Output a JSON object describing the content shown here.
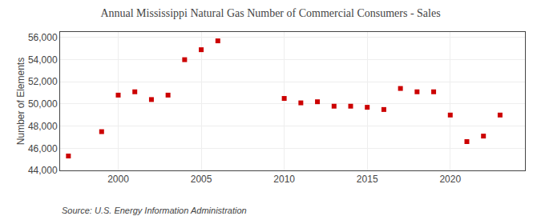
{
  "chart_data": {
    "type": "scatter",
    "title": "Annual Mississippi Natural Gas Number of Commercial Consumers - Sales",
    "ylabel": "Number of Elements",
    "annotations": [
      "Source: U.S. Energy Information Administration"
    ],
    "x": [
      1997,
      1999,
      2000,
      2001,
      2002,
      2003,
      2004,
      2005,
      2006,
      2010,
      2011,
      2012,
      2013,
      2014,
      2015,
      2016,
      2017,
      2018,
      2019,
      2020,
      2021,
      2022,
      2023
    ],
    "values": [
      45300,
      47500,
      50800,
      51100,
      50400,
      50800,
      54000,
      54900,
      55700,
      50500,
      50100,
      50200,
      49800,
      49800,
      49700,
      49500,
      51400,
      51100,
      51100,
      49000,
      46600,
      47100,
      49000
    ],
    "color": "#cc0000",
    "marker": "square",
    "xlim": [
      1996.5,
      2024.5
    ],
    "xticks": [
      2000,
      2005,
      2010,
      2015,
      2020
    ],
    "ylim": [
      44000,
      56500
    ],
    "yticks": [
      {
        "value": 44000,
        "label": "44,000"
      },
      {
        "value": 46000,
        "label": "46,000"
      },
      {
        "value": 48000,
        "label": "48,000"
      },
      {
        "value": 50000,
        "label": "50,000"
      },
      {
        "value": 52000,
        "label": "52,000"
      },
      {
        "value": 54000,
        "label": "54,000"
      },
      {
        "value": 56000,
        "label": "56,000"
      }
    ],
    "grid": true
  }
}
